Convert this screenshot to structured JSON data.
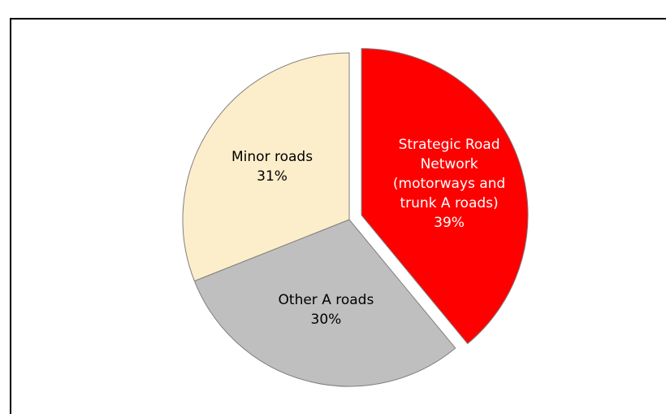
{
  "chart_data": {
    "type": "pie",
    "categories": [
      "Strategic Road Network (motorways and trunk A roads)",
      "Other A roads",
      "Minor roads"
    ],
    "values": [
      39,
      30,
      31
    ],
    "value_labels": [
      "39%",
      "30%",
      "31%"
    ],
    "colors": [
      "#ff0000",
      "#bfbfbf",
      "#fdeecb"
    ],
    "label_colors": [
      "#ffffff",
      "#000000",
      "#000000"
    ],
    "exploded": [
      true,
      false,
      false
    ]
  }
}
